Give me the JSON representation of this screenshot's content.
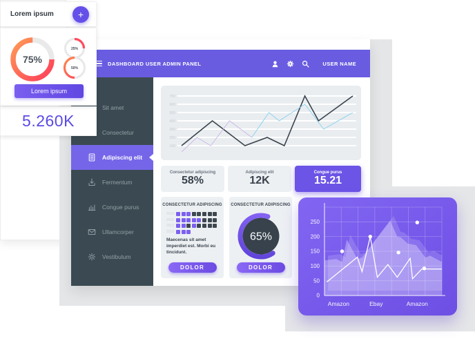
{
  "colors": {
    "accent_purple": "#695ce1",
    "active_item": "#7566e9",
    "sidebar_dark": "#3b4a52",
    "background_gray": "#e5e6e8",
    "card_gray": "#edf0f3",
    "matrix_purple": "#7c5ff0",
    "matrix_dark": "#3d474f",
    "orange": "#ff9a56",
    "red": "#ff3d5a",
    "metric_blue": "#5a4ae4"
  },
  "left_panel": {
    "header": {
      "title": "Lorem ipsum",
      "plus_label": "+"
    },
    "donut_main": {
      "value": 75,
      "label": "75%"
    },
    "donut_small_1": {
      "value": 25,
      "label": "25%"
    },
    "donut_small_2": {
      "value": 50,
      "label": "50%"
    },
    "button_label": "Lorem ipsum",
    "metric": "5.260K"
  },
  "dashboard": {
    "header": {
      "title": "DASHBOARD USER ADMIN PANEL",
      "icons": [
        "user-icon",
        "gear-icon",
        "search-icon"
      ],
      "user": "USER NAME"
    },
    "sidebar": {
      "items": [
        {
          "label": "Sit amet",
          "icon": null,
          "active": false
        },
        {
          "label": "Consectetur",
          "icon": null,
          "active": false
        },
        {
          "label": "Adipiscing elit",
          "icon": "doc-icon",
          "active": true
        },
        {
          "label": "Fermentum",
          "icon": "download-icon",
          "active": false
        },
        {
          "label": "Congue purus",
          "icon": "bar-chart-icon",
          "active": false
        },
        {
          "label": "Ullamcorper",
          "icon": "mail-icon",
          "active": false
        },
        {
          "label": "Vestibulum",
          "icon": "gear-icon",
          "active": false
        }
      ]
    },
    "stats": [
      {
        "label": "Consectetur adipiscing",
        "value": "58%",
        "highlight": false
      },
      {
        "label": "Adipiscing elit",
        "value": "12K",
        "highlight": false
      },
      {
        "label": "Congue purus",
        "value": "15.21",
        "highlight": true
      }
    ],
    "matrix_card": {
      "title": "CONSECTETUR ADIPISCING",
      "rows": [
        {
          "year": "2018",
          "cells": [
            "p",
            "p",
            "p",
            "d",
            "d",
            "d",
            "d",
            "d"
          ]
        },
        {
          "year": "2016",
          "cells": [
            "p",
            "p",
            "p",
            "p",
            "p",
            "d",
            "d",
            "d"
          ]
        },
        {
          "year": "2012",
          "cells": [
            "p",
            "p",
            "d",
            "p",
            "d",
            "d",
            "d",
            "d"
          ]
        },
        {
          "year": "2010",
          "cells": [
            "p",
            "p",
            "p"
          ]
        }
      ],
      "text": "Maecenas sit amet imperdiet est. Morbi eu tincidunt.",
      "button_label": "DOLOR"
    },
    "donut_card": {
      "title": "CONSECTETUR ADIPISCING",
      "donut": {
        "value": 65,
        "label": "65%"
      },
      "button_label": "DOLOR"
    }
  },
  "chart_data": [
    {
      "id": "traffic_line_chart",
      "type": "line",
      "title": "",
      "yticks": [
        100,
        200,
        300,
        400,
        500,
        600,
        700
      ],
      "ylim": [
        0,
        750
      ],
      "xlim": [
        0,
        10
      ],
      "grid": "horizontal",
      "legend": "none",
      "series": [
        {
          "name": "dark",
          "color": "#39424c",
          "width": 1.6,
          "points": [
            [
              0,
              100
            ],
            [
              1.8,
              400
            ],
            [
              3.7,
              100
            ],
            [
              5,
              200
            ],
            [
              6,
              100
            ],
            [
              7.2,
              700
            ],
            [
              8,
              400
            ],
            [
              10,
              700
            ]
          ]
        },
        {
          "name": "lavender",
          "color": "#ccb9e8",
          "width": 1,
          "points": [
            [
              0,
              25
            ],
            [
              0.9,
              200
            ],
            [
              1.7,
              100
            ],
            [
              2.8,
              400
            ],
            [
              4.1,
              200
            ]
          ]
        },
        {
          "name": "sky-blue",
          "color": "#8ed2ee",
          "width": 1,
          "points": [
            [
              4.1,
              200
            ],
            [
              5.1,
              500
            ],
            [
              5.7,
              400
            ],
            [
              7.2,
              600
            ],
            [
              8.3,
              300
            ],
            [
              10,
              500
            ]
          ]
        }
      ]
    },
    {
      "id": "marketplace_area_chart",
      "type": "area",
      "yticks": [
        0,
        50,
        100,
        150,
        200,
        250
      ],
      "ylim": [
        0,
        300
      ],
      "xlim": [
        0,
        10
      ],
      "grid": "both",
      "categories": [
        {
          "label": "Amazon",
          "x": 1.2
        },
        {
          "label": "Ebay",
          "x": 4.4
        },
        {
          "label": "Amazon",
          "x": 7.9
        }
      ],
      "line": {
        "color": "#ffffff",
        "points": [
          [
            0.2,
            46
          ],
          [
            2.8,
            130
          ],
          [
            3.2,
            81
          ],
          [
            3.9,
            200
          ],
          [
            4.5,
            62
          ],
          [
            5.4,
            105
          ],
          [
            6.2,
            62
          ],
          [
            7.3,
            126
          ],
          [
            7.5,
            57
          ],
          [
            8.3,
            90
          ],
          [
            10,
            90
          ]
        ]
      },
      "dots": [
        [
          1.5,
          150
        ],
        [
          3.9,
          200
        ],
        [
          6.3,
          146
        ],
        [
          7.9,
          248
        ],
        [
          8.5,
          92
        ]
      ],
      "area": {
        "color": "#ffffff",
        "opacity": 0.3,
        "points": [
          [
            0,
            119
          ],
          [
            1,
            124
          ],
          [
            1.5,
            114
          ],
          [
            1.9,
            190
          ],
          [
            2.8,
            124
          ],
          [
            3.2,
            129
          ],
          [
            5.6,
            254
          ],
          [
            6.2,
            200
          ],
          [
            6.5,
            197
          ],
          [
            7.1,
            176
          ],
          [
            7.8,
            171
          ],
          [
            8.6,
            129
          ],
          [
            9,
            135
          ],
          [
            10,
            114
          ]
        ]
      }
    }
  ]
}
